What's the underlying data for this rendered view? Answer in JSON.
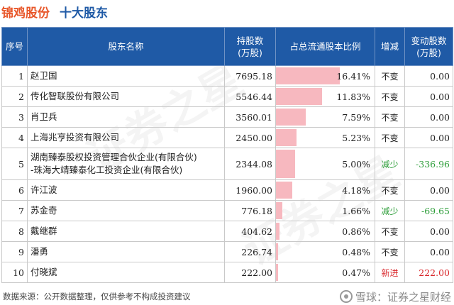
{
  "header": {
    "company": "锦鸡股份",
    "subtitle": "十大股东"
  },
  "table": {
    "columns": [
      "序号",
      "股东名称",
      "持股数\n(万股)",
      "占总流通股本比例",
      "增减",
      "变动股数\n(万股)"
    ],
    "rows": [
      {
        "idx": "1",
        "name": "赵卫国",
        "shares": "7695.18",
        "pct_text": "16.41%",
        "pct": 16.41,
        "change": "不变",
        "change_type": "same",
        "delta": "0.00"
      },
      {
        "idx": "2",
        "name": "传化智联股份有限公司",
        "shares": "5546.44",
        "pct_text": "11.83%",
        "pct": 11.83,
        "change": "不变",
        "change_type": "same",
        "delta": "0.00"
      },
      {
        "idx": "3",
        "name": "肖卫兵",
        "shares": "3560.01",
        "pct_text": "7.59%",
        "pct": 7.59,
        "change": "不变",
        "change_type": "same",
        "delta": "0.00"
      },
      {
        "idx": "4",
        "name": "上海兆亨投资有限公司",
        "shares": "2450.00",
        "pct_text": "5.23%",
        "pct": 5.23,
        "change": "不变",
        "change_type": "same",
        "delta": "0.00"
      },
      {
        "idx": "5",
        "name": "湖南臻泰股权投资管理合伙企业(有限合伙)\n-珠海大靖臻泰化工投资企业(有限合伙)",
        "shares": "2344.08",
        "pct_text": "5.00%",
        "pct": 5.0,
        "change": "减少",
        "change_type": "down",
        "delta": "-336.96"
      },
      {
        "idx": "6",
        "name": "许江波",
        "shares": "1960.00",
        "pct_text": "4.18%",
        "pct": 4.18,
        "change": "不变",
        "change_type": "same",
        "delta": "0.00"
      },
      {
        "idx": "7",
        "name": "苏金奇",
        "shares": "776.18",
        "pct_text": "1.66%",
        "pct": 1.66,
        "change": "减少",
        "change_type": "down",
        "delta": "-69.65"
      },
      {
        "idx": "8",
        "name": "戴继群",
        "shares": "404.62",
        "pct_text": "0.86%",
        "pct": 0.86,
        "change": "不变",
        "change_type": "same",
        "delta": "0.00"
      },
      {
        "idx": "9",
        "name": "潘勇",
        "shares": "226.74",
        "pct_text": "0.48%",
        "pct": 0.48,
        "change": "不变",
        "change_type": "same",
        "delta": "0.00"
      },
      {
        "idx": "10",
        "name": "付晓斌",
        "shares": "222.00",
        "pct_text": "0.47%",
        "pct": 0.47,
        "change": "新进",
        "change_type": "new",
        "delta": "222.00"
      }
    ]
  },
  "footer": {
    "source": "数据来源：公开数据整理，仅供参考不构成投资建议",
    "brand": "雪球：证券之星财经"
  },
  "colors": {
    "header_bg": "#1f5aa6",
    "company": "#e8572a",
    "subtitle": "#1f5aa6",
    "bar": "#f7b8bf",
    "down": "#2e9e3a",
    "new": "#d9262a"
  }
}
